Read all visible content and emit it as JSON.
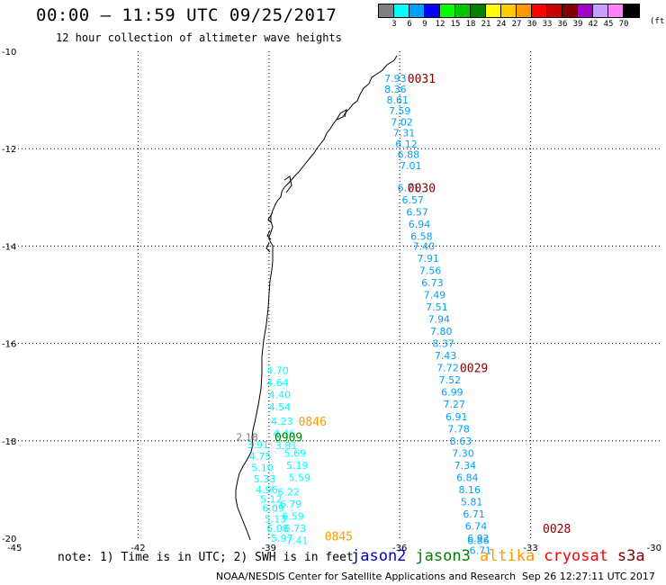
{
  "header": {
    "title": "00:00 — 11:59 UTC 09/25/2017",
    "subtitle": "12 hour collection of altimeter wave heights"
  },
  "legend": {
    "unit": "(ft)",
    "bins": [
      {
        "label": "3",
        "color": "#808080"
      },
      {
        "label": "6",
        "color": "#00ffff"
      },
      {
        "label": "9",
        "color": "#00a0ff"
      },
      {
        "label": "12",
        "color": "#0000ff"
      },
      {
        "label": "15",
        "color": "#00ff00"
      },
      {
        "label": "18",
        "color": "#00c800"
      },
      {
        "label": "21",
        "color": "#008000"
      },
      {
        "label": "24",
        "color": "#ffff00"
      },
      {
        "label": "27",
        "color": "#ffcc00"
      },
      {
        "label": "30",
        "color": "#ff9900"
      },
      {
        "label": "33",
        "color": "#ff0000"
      },
      {
        "label": "36",
        "color": "#c80000"
      },
      {
        "label": "39",
        "color": "#800000"
      },
      {
        "label": "42",
        "color": "#a000c8"
      },
      {
        "label": "45",
        "color": "#c8a0ff"
      },
      {
        "label": "70",
        "color": "#ff80ff"
      },
      {
        "label": "",
        "color": "#000000"
      }
    ]
  },
  "map": {
    "lon_range": [
      -45,
      -30
    ],
    "lat_range": [
      -20,
      -10
    ],
    "x_ticks": [
      "-45",
      "-42",
      "-39",
      "-36",
      "-33",
      "-30"
    ],
    "y_ticks": [
      "-10",
      "-12",
      "-14",
      "-16",
      "-18",
      "-20"
    ],
    "passes": [
      {
        "satellite": "s3a",
        "time": "0031",
        "time_color": "#800000",
        "value_color": "#00a0ff",
        "time_pos": [
          -35.5,
          -10.55
        ],
        "points": [
          {
            "lon": -36.1,
            "lat": -10.55,
            "value": "7.93"
          },
          {
            "lon": -36.1,
            "lat": -10.78,
            "value": "8.36"
          },
          {
            "lon": -36.05,
            "lat": -11.0,
            "value": "8.61"
          },
          {
            "lon": -36.0,
            "lat": -11.22,
            "value": "7.59"
          },
          {
            "lon": -35.95,
            "lat": -11.45,
            "value": "7.02"
          },
          {
            "lon": -35.9,
            "lat": -11.67,
            "value": "7.31"
          },
          {
            "lon": -35.85,
            "lat": -11.9,
            "value": "6.12"
          },
          {
            "lon": -35.8,
            "lat": -12.12,
            "value": "6.88"
          },
          {
            "lon": -35.75,
            "lat": -12.35,
            "value": "7.01"
          }
        ]
      },
      {
        "satellite": "s3a",
        "time": "0030",
        "time_color": "#800000",
        "value_color": "#00a0ff",
        "time_pos": [
          -35.5,
          -12.8
        ],
        "points": [
          {
            "lon": -35.8,
            "lat": -12.8,
            "value": "6.71"
          },
          {
            "lon": -35.7,
            "lat": -13.05,
            "value": "6.57"
          },
          {
            "lon": -35.6,
            "lat": -13.3,
            "value": "6.57"
          },
          {
            "lon": -35.55,
            "lat": -13.55,
            "value": "6.94"
          },
          {
            "lon": -35.5,
            "lat": -13.8,
            "value": "6.58"
          },
          {
            "lon": -35.45,
            "lat": -14.0,
            "value": "7.40"
          },
          {
            "lon": -35.35,
            "lat": -14.25,
            "value": "7.91"
          },
          {
            "lon": -35.3,
            "lat": -14.5,
            "value": "7.56"
          },
          {
            "lon": -35.25,
            "lat": -14.75,
            "value": "6.73"
          },
          {
            "lon": -35.2,
            "lat": -15.0,
            "value": "7.49"
          },
          {
            "lon": -35.15,
            "lat": -15.25,
            "value": "7.51"
          },
          {
            "lon": -35.1,
            "lat": -15.5,
            "value": "7.94"
          },
          {
            "lon": -35.05,
            "lat": -15.75,
            "value": "7.80"
          },
          {
            "lon": -35.0,
            "lat": -16.0,
            "value": "8.37"
          }
        ]
      },
      {
        "satellite": "s3a",
        "time": "0029",
        "time_color": "#800000",
        "value_color": "#00a0ff",
        "time_pos": [
          -34.3,
          -16.5
        ],
        "points": [
          {
            "lon": -34.95,
            "lat": -16.25,
            "value": "7.43"
          },
          {
            "lon": -34.9,
            "lat": -16.5,
            "value": "7.72"
          },
          {
            "lon": -34.85,
            "lat": -16.75,
            "value": "7.52"
          },
          {
            "lon": -34.8,
            "lat": -17.0,
            "value": "6.99"
          },
          {
            "lon": -34.75,
            "lat": -17.25,
            "value": "7.27"
          },
          {
            "lon": -34.7,
            "lat": -17.5,
            "value": "6.91"
          },
          {
            "lon": -34.65,
            "lat": -17.75,
            "value": "7.78"
          },
          {
            "lon": -34.6,
            "lat": -18.0,
            "value": "8.63"
          },
          {
            "lon": -34.55,
            "lat": -18.25,
            "value": "7.30"
          },
          {
            "lon": -34.5,
            "lat": -18.5,
            "value": "7.34"
          }
        ]
      },
      {
        "satellite": "s3a",
        "time": "0028",
        "time_color": "#800000",
        "value_color": "#00a0ff",
        "time_pos": [
          -32.4,
          -19.8
        ],
        "points": [
          {
            "lon": -34.45,
            "lat": -18.75,
            "value": "6.84"
          },
          {
            "lon": -34.4,
            "lat": -19.0,
            "value": "8.16"
          },
          {
            "lon": -34.35,
            "lat": -19.25,
            "value": "5.81"
          },
          {
            "lon": -34.3,
            "lat": -19.5,
            "value": "6.71"
          },
          {
            "lon": -34.25,
            "lat": -19.75,
            "value": "6.74"
          },
          {
            "lon": -34.2,
            "lat": -20.0,
            "value": "6.92"
          },
          {
            "lon": -34.2,
            "lat": -20.05,
            "value": "6.86"
          },
          {
            "lon": -34.15,
            "lat": -20.25,
            "value": "6.71"
          }
        ]
      },
      {
        "satellite": "altika",
        "time": "0846",
        "time_color": "#ff9900",
        "value_color": "#00ffff",
        "time_pos": [
          -38.0,
          -17.6
        ],
        "points": [
          {
            "lon": -38.8,
            "lat": -16.55,
            "value": "4.70"
          },
          {
            "lon": -38.8,
            "lat": -16.8,
            "value": "4.64"
          },
          {
            "lon": -38.75,
            "lat": -17.05,
            "value": "4.40"
          },
          {
            "lon": -38.75,
            "lat": -17.3,
            "value": "4.54"
          },
          {
            "lon": -38.7,
            "lat": -17.6,
            "value": "4.23"
          },
          {
            "lon": -38.65,
            "lat": -17.85,
            "value": "4.46"
          },
          {
            "lon": -38.6,
            "lat": -18.1,
            "value": "3.81"
          }
        ]
      },
      {
        "satellite": "jason3",
        "time": "0909",
        "time_color": "#008000",
        "value_color": "#808080",
        "time_pos": [
          -38.55,
          -17.92
        ],
        "points": [
          {
            "lon": -39.5,
            "lat": -17.92,
            "value": "2.18"
          }
        ]
      },
      {
        "satellite": "altika",
        "time": "0845",
        "time_color": "#ff9900",
        "value_color": "#00ffff",
        "time_pos": [
          -37.4,
          -19.95
        ],
        "points": [
          {
            "lon": -39.25,
            "lat": -18.08,
            "value": "3.91"
          },
          {
            "lon": -39.2,
            "lat": -18.32,
            "value": "4.75"
          },
          {
            "lon": -38.4,
            "lat": -18.25,
            "value": "5.69"
          },
          {
            "lon": -39.15,
            "lat": -18.55,
            "value": "5.10"
          },
          {
            "lon": -38.35,
            "lat": -18.5,
            "value": "5.19"
          },
          {
            "lon": -39.1,
            "lat": -18.78,
            "value": "5.33"
          },
          {
            "lon": -38.3,
            "lat": -18.75,
            "value": "5.59"
          },
          {
            "lon": -39.05,
            "lat": -19.0,
            "value": "4.96"
          },
          {
            "lon": -38.55,
            "lat": -19.05,
            "value": "6.22"
          },
          {
            "lon": -38.95,
            "lat": -19.2,
            "value": "5.12"
          },
          {
            "lon": -38.5,
            "lat": -19.3,
            "value": "6.79"
          },
          {
            "lon": -38.9,
            "lat": -19.38,
            "value": "6.09"
          },
          {
            "lon": -38.45,
            "lat": -19.55,
            "value": "6.59"
          },
          {
            "lon": -38.85,
            "lat": -19.6,
            "value": "5.13"
          },
          {
            "lon": -38.4,
            "lat": -19.8,
            "value": "6.73"
          },
          {
            "lon": -38.8,
            "lat": -19.8,
            "value": "6.08"
          },
          {
            "lon": -38.7,
            "lat": -20.0,
            "value": "5.97"
          },
          {
            "lon": -38.35,
            "lat": -20.05,
            "value": "7.41"
          }
        ]
      }
    ]
  },
  "footer": {
    "note": "note: 1) Time is in UTC; 2) SWH is in feet",
    "satellites": [
      {
        "name": "jason2",
        "color": "#0000c8"
      },
      {
        "name": "jason3",
        "color": "#008000"
      },
      {
        "name": "altika",
        "color": "#ff9900"
      },
      {
        "name": "cryosat",
        "color": "#ff0000"
      },
      {
        "name": "s3a",
        "color": "#800000"
      }
    ],
    "credit": "NOAA/NESDIS Center for Satellite Applications and Research",
    "timestamp": "Sep 26 12:27:11 UTC 2017"
  }
}
